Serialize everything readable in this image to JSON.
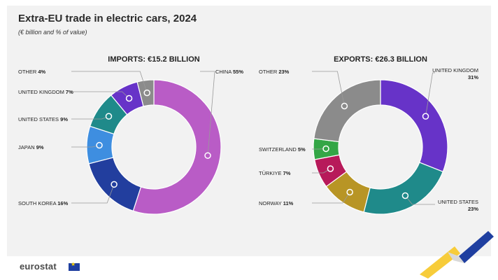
{
  "header": {
    "title": "Extra-EU trade in electric cars, 2024",
    "subtitle": "(€ billion and % of value)"
  },
  "footer": {
    "logo_text": "eurostat"
  },
  "colors": {
    "china": "#b95cc6",
    "south_korea": "#223e9e",
    "japan": "#3e8ee0",
    "united_states": "#1f8a8a",
    "united_kingdom": "#6733c8",
    "other": "#8b8b8b",
    "norway": "#b89525",
    "turkiye": "#b71a5a",
    "switzerland": "#34a646"
  },
  "chart_data": [
    {
      "type": "pie",
      "donut": true,
      "title": "IMPORTS: €15.2 BILLION",
      "categories": [
        "CHINA",
        "SOUTH KOREA",
        "JAPAN",
        "UNITED STATES",
        "UNITED KINGDOM",
        "OTHER"
      ],
      "values": [
        55,
        16,
        9,
        9,
        7,
        4
      ],
      "labels": [
        {
          "name": "CHINA",
          "value": "55%",
          "side": "right"
        },
        {
          "name": "SOUTH KOREA",
          "value": "16%",
          "side": "left"
        },
        {
          "name": "JAPAN",
          "value": "9%",
          "side": "left"
        },
        {
          "name": "UNITED STATES",
          "value": "9%",
          "side": "left"
        },
        {
          "name": "UNITED KINGDOM",
          "value": "7%",
          "side": "left"
        },
        {
          "name": "OTHER",
          "value": "4%",
          "side": "left"
        }
      ]
    },
    {
      "type": "pie",
      "donut": true,
      "title": "EXPORTS: €26.3 BILLION",
      "categories": [
        "UNITED KINGDOM",
        "UNITED STATES",
        "NORWAY",
        "TÜRKIYE",
        "SWITZERLAND",
        "OTHER"
      ],
      "values": [
        31,
        23,
        11,
        7,
        5,
        23
      ],
      "labels": [
        {
          "name": "UNITED KINGDOM",
          "value": "31%",
          "side": "right"
        },
        {
          "name": "UNITED STATES",
          "value": "23%",
          "side": "right"
        },
        {
          "name": "NORWAY",
          "value": "11%",
          "side": "left"
        },
        {
          "name": "TÜRKIYE",
          "value": "7%",
          "side": "left"
        },
        {
          "name": "SWITZERLAND",
          "value": "5%",
          "side": "left"
        },
        {
          "name": "OTHER",
          "value": "23%",
          "side": "left"
        }
      ]
    }
  ]
}
